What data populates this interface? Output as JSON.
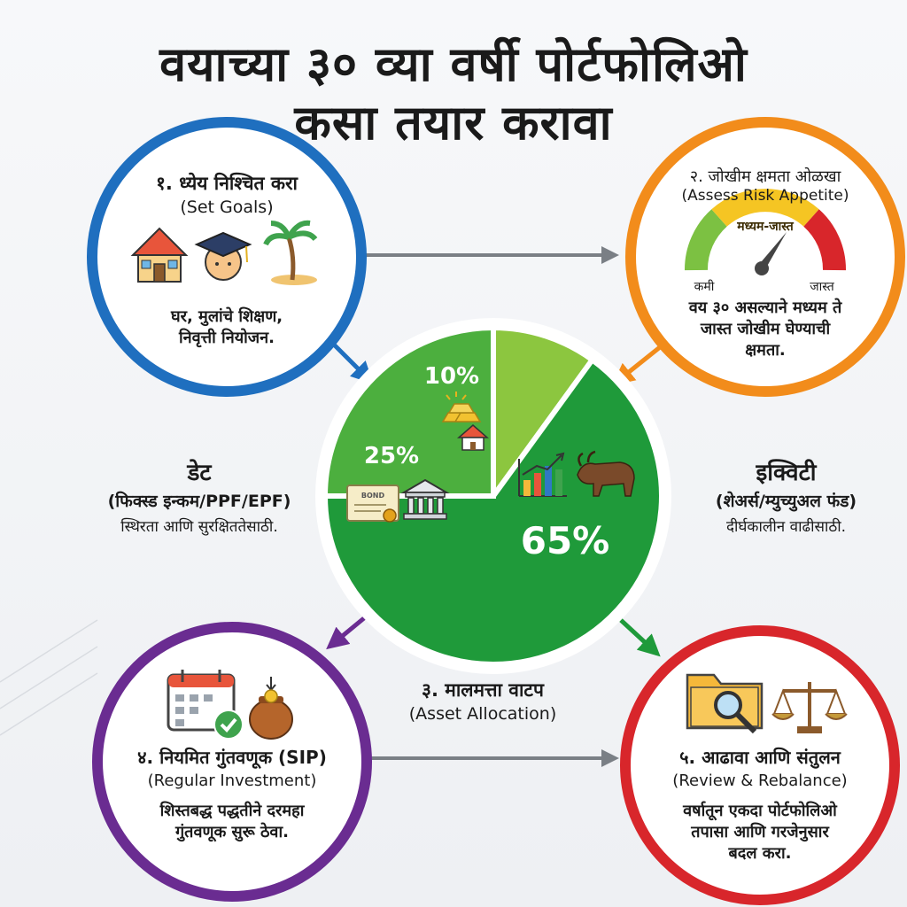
{
  "title": {
    "line1": "वयाच्या ३० व्या वर्षी पोर्टफोलिओ",
    "line2": "कसा तयार करावा"
  },
  "steps": {
    "goals": {
      "heading": "१. ध्येय निश्चित करा",
      "english": "(Set Goals)",
      "desc1": "घर, मुलांचे शिक्षण,",
      "desc2": "निवृत्ती नियोजन.",
      "icons": [
        "house-icon",
        "graduation-cap-icon",
        "palm-tree-icon"
      ],
      "color": "#1f6fbf"
    },
    "risk": {
      "heading": "२. जोखीम क्षमता ओळखा",
      "english": "(Assess Risk Appetite)",
      "gauge_top": "मध्यम-जास्त",
      "gauge_low": "कमी",
      "gauge_high": "जास्त",
      "desc1": "वय ३० असल्याने मध्यम ते",
      "desc2": "जास्त जोखीम घेण्याची",
      "desc3": "क्षमता.",
      "icons": [
        "risk-gauge-icon"
      ],
      "color": "#f28c1b"
    },
    "allocation": {
      "heading": "३. मालमत्ता वाटप",
      "english": "(Asset Allocation)"
    },
    "sip": {
      "heading": "४. नियमित गुंतवणूक (SIP)",
      "english": "(Regular Investment)",
      "desc1": "शिस्तबद्ध पद्धतीने दरमहा",
      "desc2": "गुंतवणूक सुरू ठेवा.",
      "icons": [
        "calendar-check-icon",
        "money-pot-icon"
      ],
      "color": "#6a2c91"
    },
    "review": {
      "heading": "५. आढावा आणि संतुलन",
      "english": "(Review & Rebalance)",
      "desc1": "वर्षातून एकदा पोर्टफोलिओ",
      "desc2": "तपासा आणि गरजेनुसार",
      "desc3": "बदल करा.",
      "icons": [
        "folder-search-icon",
        "balance-scale-icon"
      ],
      "color": "#d8262b"
    }
  },
  "debt": {
    "heading": "डेट",
    "sub": "(फिक्स्ड इन्कम/PPF/EPF)",
    "desc": "स्थिरता आणि सुरक्षिततेसाठी."
  },
  "equity": {
    "heading": "इक्विटी",
    "sub": "(शेअर्स/म्युच्युअल फंड)",
    "desc": "दीर्घकालीन वाढीसाठी."
  },
  "slice_icons": {
    "gold": [
      "gold-bars-icon",
      "house-icon"
    ],
    "debt": [
      "bond-certificate-icon",
      "bank-icon"
    ],
    "equity": [
      "bar-chart-icon",
      "bull-icon"
    ]
  },
  "chart_data": {
    "type": "pie",
    "slices": [
      {
        "label": "10%",
        "value": 10,
        "color": "#8cc63f"
      },
      {
        "label": "65%",
        "value": 65,
        "color": "#1f9a3a"
      },
      {
        "label": "25%",
        "value": 25,
        "color": "#4caf3e"
      }
    ]
  },
  "colors": {
    "arrow_gray": "#7a7f85",
    "arrow_blue": "#1f6fbf",
    "arrow_orange": "#f28c1b",
    "arrow_purple": "#6a2c91",
    "arrow_green": "#1f9a3a"
  }
}
